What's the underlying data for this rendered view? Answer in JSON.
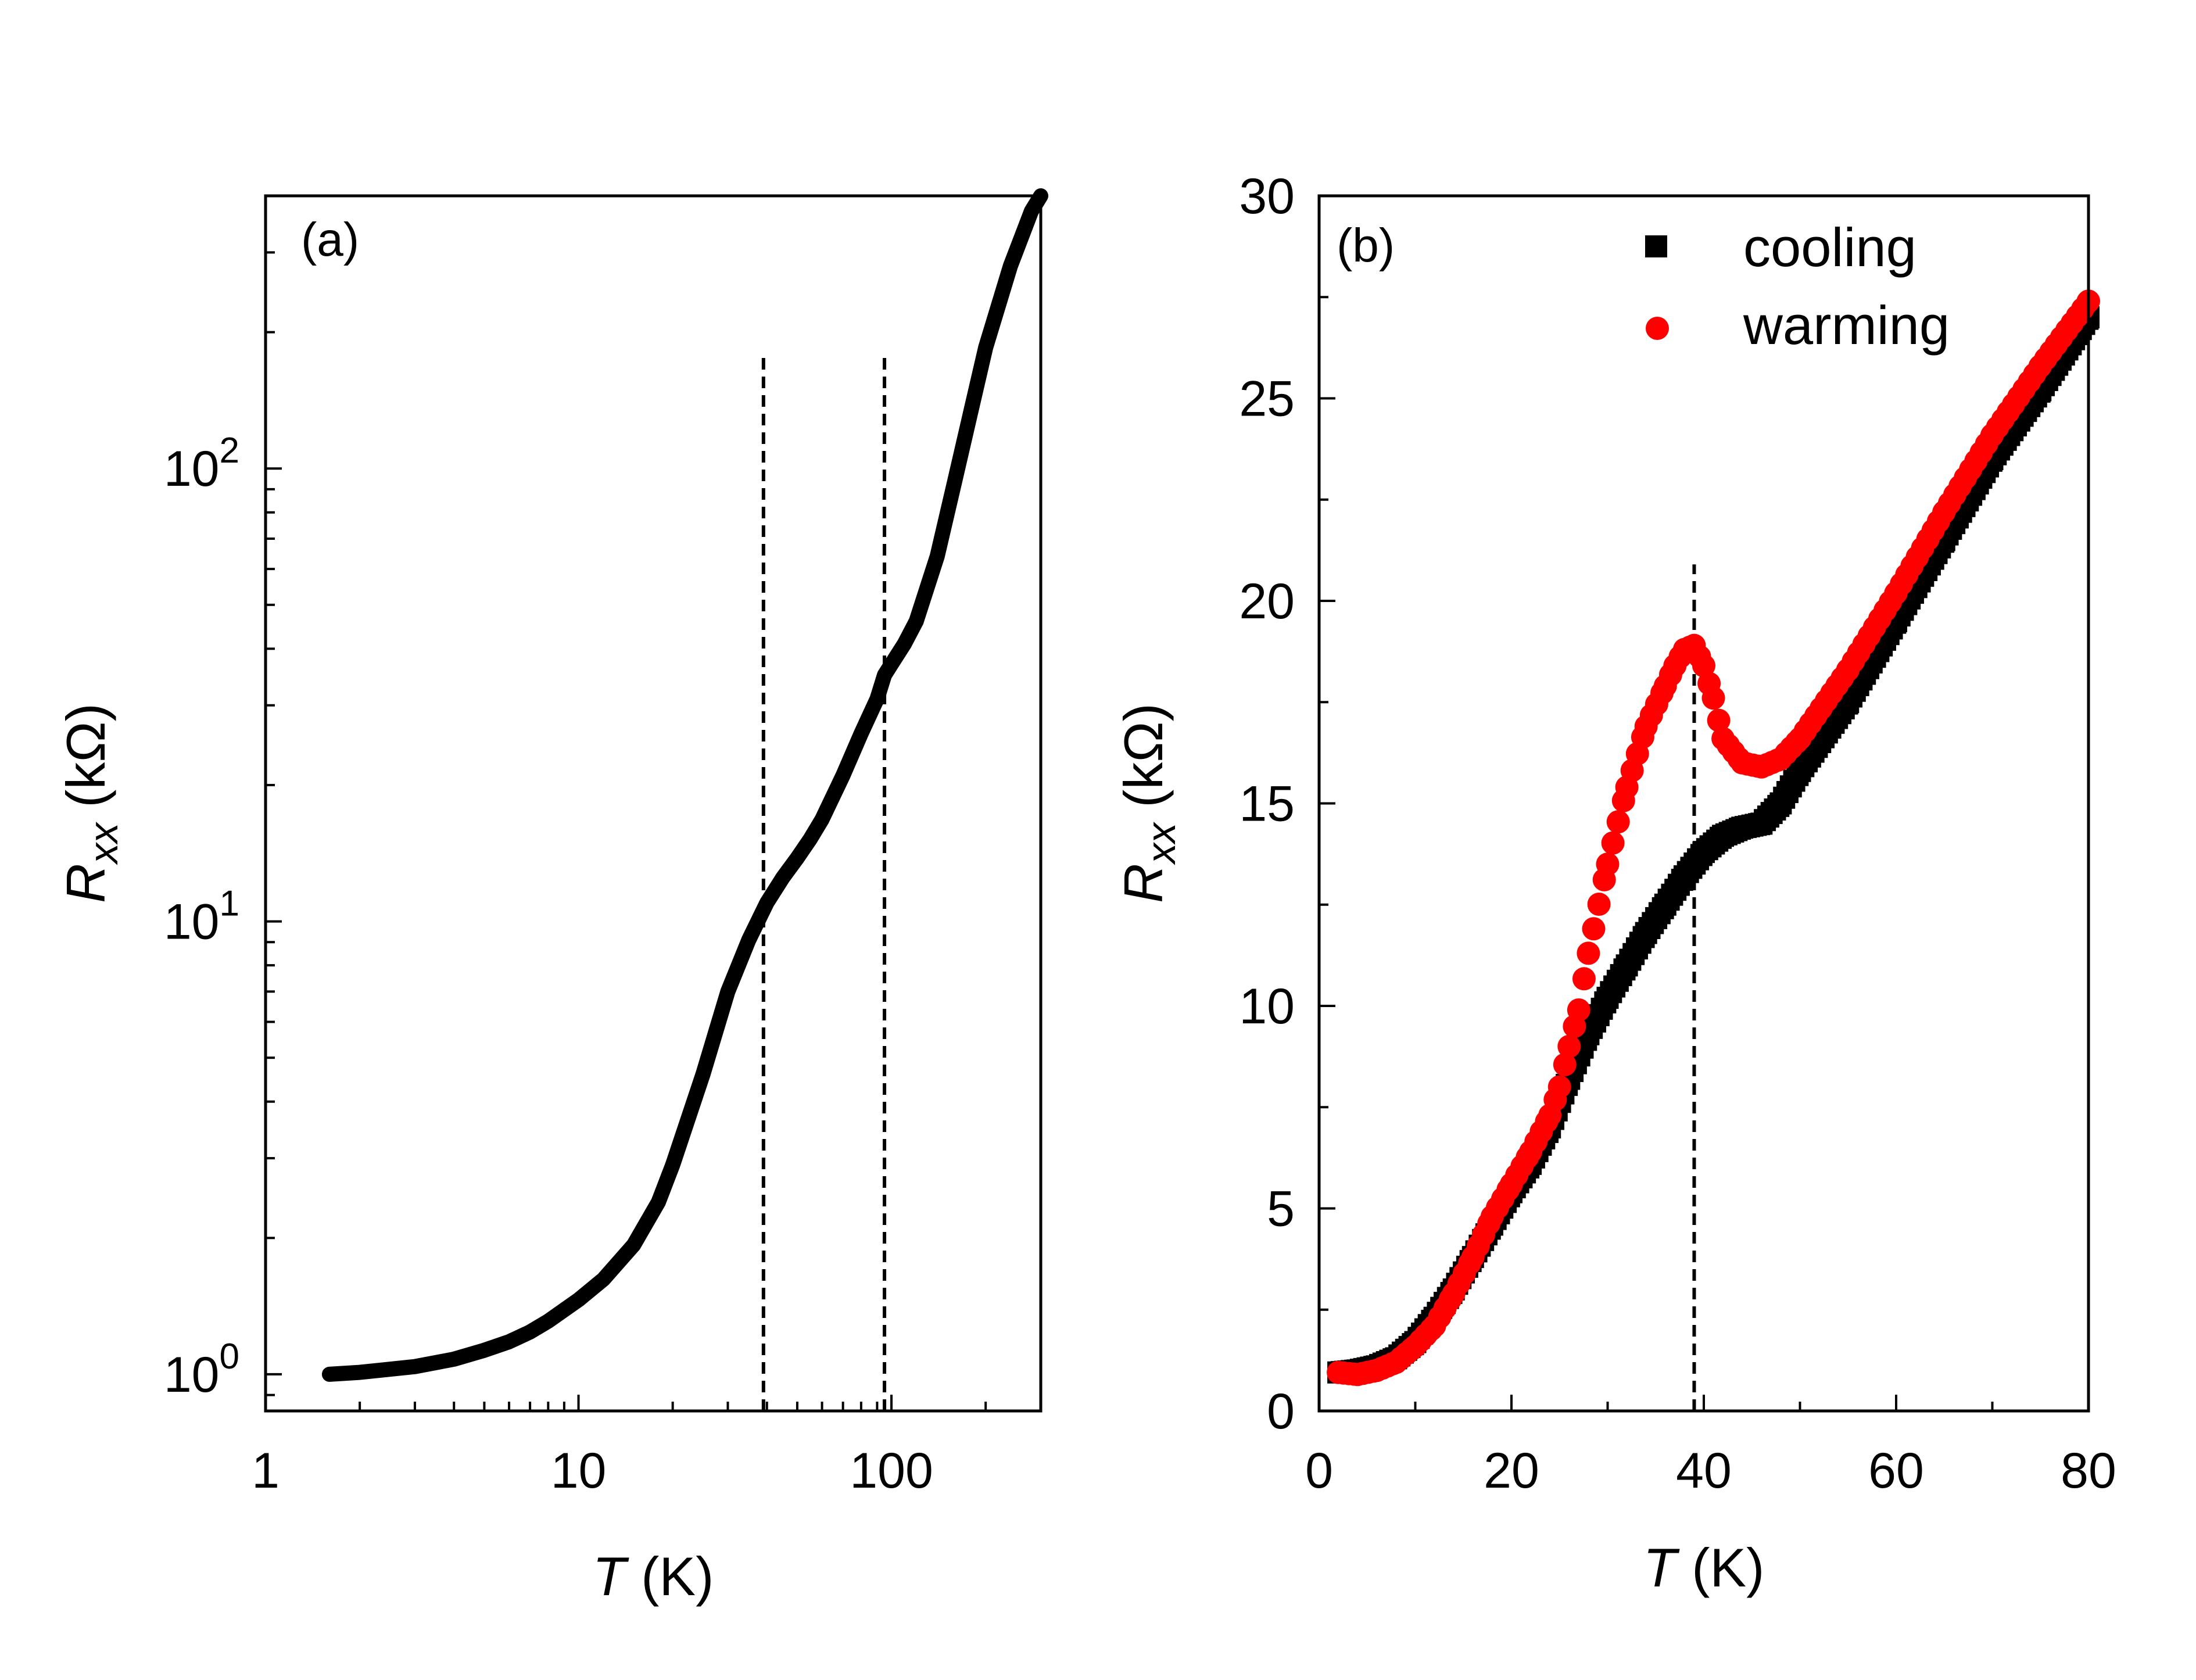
{
  "figure": {
    "colors": {
      "axis": "#000000",
      "cooling": "#000000",
      "warming": "#ff0000",
      "background": "#ffffff"
    }
  },
  "chart_data": [
    {
      "panel_label": "(a)",
      "type": "line",
      "xscale": "log",
      "yscale": "log",
      "xlim": [
        1,
        300
      ],
      "ylim": [
        0.83,
        400
      ],
      "xlabel": {
        "symbol": "T",
        "unit": " (K)"
      },
      "ylabel": {
        "symbol": "R",
        "subscript": "xx",
        "unit": " (kΩ)"
      },
      "x_ticks": [
        {
          "value": 1,
          "label": "1"
        },
        {
          "value": 10,
          "label": "10"
        },
        {
          "value": 100,
          "label": "100"
        }
      ],
      "y_ticks": [
        {
          "value": 1,
          "base": "10",
          "exp": "0"
        },
        {
          "value": 10,
          "base": "10",
          "exp": "1"
        },
        {
          "value": 100,
          "base": "10",
          "exp": "2"
        }
      ],
      "vlines": [
        {
          "x": 39,
          "ymax": 180,
          "style": "dashed"
        },
        {
          "x": 95,
          "ymax": 180,
          "style": "dashed"
        }
      ],
      "series": [
        {
          "name": "Rxx",
          "color": "#000000",
          "x": [
            1.6,
            2,
            3,
            4,
            5,
            6,
            7,
            8,
            10,
            12,
            15,
            18,
            20,
            25,
            30,
            35,
            40,
            45,
            50,
            55,
            60,
            70,
            80,
            90,
            95,
            100,
            110,
            120,
            140,
            160,
            180,
            200,
            240,
            280,
            300
          ],
          "y": [
            1.0,
            1.01,
            1.04,
            1.08,
            1.13,
            1.18,
            1.24,
            1.31,
            1.46,
            1.62,
            1.93,
            2.4,
            2.9,
            4.6,
            7.0,
            9.1,
            11.0,
            12.5,
            13.8,
            15.2,
            16.8,
            21.0,
            26.0,
            31.0,
            35.0,
            37.0,
            41.0,
            46.0,
            64.0,
            95.0,
            135.0,
            185.0,
            280.0,
            370.0,
            400.0
          ]
        }
      ]
    },
    {
      "panel_label": "(b)",
      "type": "scatter",
      "xlim": [
        0,
        80
      ],
      "ylim": [
        0,
        30
      ],
      "xlabel": {
        "symbol": "T",
        "unit": " (K)"
      },
      "ylabel": {
        "symbol": "R",
        "subscript": "xx",
        "unit": " (kΩ)"
      },
      "x_ticks": [
        0,
        20,
        40,
        60,
        80
      ],
      "y_ticks": [
        0,
        5,
        10,
        15,
        20,
        25,
        30
      ],
      "vlines": [
        {
          "x": 39,
          "ymax": 20.9,
          "style": "dashed"
        }
      ],
      "legend": {
        "position": "top-right"
      },
      "series": [
        {
          "name": "cooling",
          "marker": "square",
          "color": "#000000",
          "x": [
            2,
            4,
            6,
            8,
            10,
            12,
            14,
            16,
            18,
            20,
            22,
            24,
            26,
            28,
            30,
            32,
            34,
            36,
            38,
            40,
            42,
            44,
            46,
            48,
            50,
            55,
            60,
            65,
            70,
            75,
            80
          ],
          "y": [
            0.95,
            1.0,
            1.1,
            1.3,
            1.7,
            2.3,
            3.0,
            3.8,
            4.6,
            5.4,
            6.1,
            7.0,
            8.2,
            9.3,
            10.2,
            11.0,
            11.8,
            12.5,
            13.2,
            13.8,
            14.2,
            14.4,
            14.5,
            15.0,
            15.8,
            17.5,
            19.5,
            21.5,
            23.5,
            25.2,
            27.0
          ]
        },
        {
          "name": "warming",
          "marker": "circle",
          "color": "#ff0000",
          "x": [
            2,
            4,
            6,
            8,
            10,
            12,
            14,
            16,
            18,
            20,
            22,
            24,
            25,
            26,
            27,
            28,
            30,
            32,
            34,
            36,
            37,
            38,
            39,
            40,
            41,
            42,
            44,
            46,
            48,
            50,
            55,
            60,
            65,
            70,
            75,
            80
          ],
          "y": [
            0.95,
            0.9,
            1.0,
            1.2,
            1.6,
            2.1,
            2.9,
            3.8,
            4.8,
            5.6,
            6.4,
            7.3,
            8.0,
            9.0,
            9.9,
            11.3,
            13.5,
            15.4,
            16.9,
            17.9,
            18.4,
            18.8,
            18.9,
            18.4,
            17.6,
            16.6,
            16.0,
            15.9,
            16.1,
            16.6,
            18.3,
            20.2,
            22.2,
            24.1,
            25.8,
            27.4
          ]
        }
      ]
    }
  ]
}
